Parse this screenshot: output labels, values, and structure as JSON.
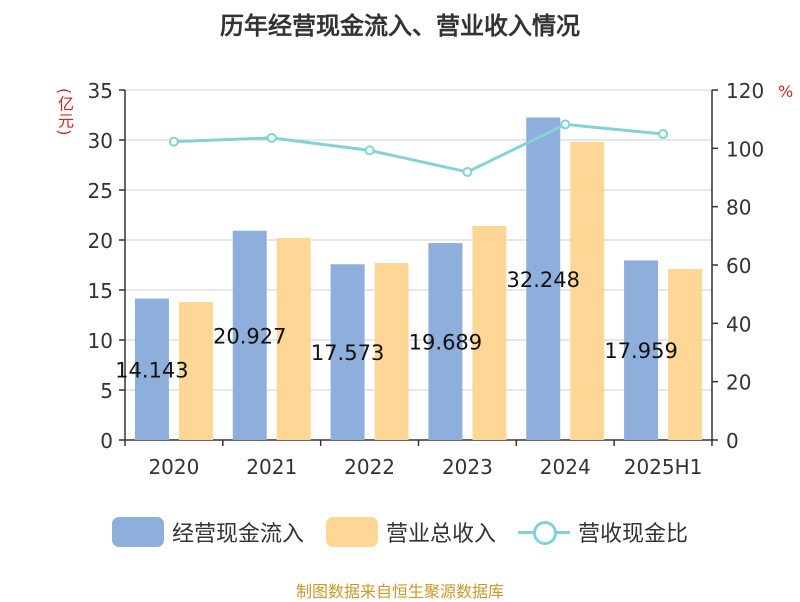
{
  "title": "历年经营现金流入、营业收入情况",
  "y_left_unit": "(亿元)",
  "y_right_unit": "%",
  "source": "制图数据来自恒生聚源数据库",
  "colors": {
    "cash_inflow": "#8eaedc",
    "revenue": "#fed796",
    "ratio": "#84d2d6",
    "unit_text": "#e02020",
    "source_text": "#c89a2c"
  },
  "legend": [
    {
      "label": "经营现金流入",
      "type": "bar",
      "color": "#8eaedc"
    },
    {
      "label": "营业总收入",
      "type": "bar",
      "color": "#fed796"
    },
    {
      "label": "营收现金比",
      "type": "line",
      "color": "#84d2d6"
    }
  ],
  "chart_data": {
    "type": "bar",
    "categories": [
      "2020",
      "2021",
      "2022",
      "2023",
      "2024",
      "2025H1"
    ],
    "series": [
      {
        "name": "经营现金流入",
        "type": "bar",
        "axis": "left",
        "values": [
          14.143,
          20.927,
          17.573,
          19.689,
          32.248,
          17.959
        ],
        "labels": [
          "14.143",
          "20.927",
          "17.573",
          "19.689",
          "32.248",
          "17.959"
        ]
      },
      {
        "name": "营业总收入",
        "type": "bar",
        "axis": "left",
        "values": [
          13.8,
          20.2,
          17.7,
          21.4,
          29.8,
          17.1
        ]
      },
      {
        "name": "营收现金比",
        "type": "line",
        "axis": "right",
        "values": [
          102.3,
          103.6,
          99.3,
          91.9,
          108.2,
          104.9
        ]
      }
    ],
    "y_left": {
      "min": 0,
      "max": 35,
      "ticks": [
        0,
        5,
        10,
        15,
        20,
        25,
        30,
        35
      ]
    },
    "y_right": {
      "min": 0,
      "max": 120,
      "ticks": [
        0,
        20,
        40,
        60,
        80,
        100,
        120
      ]
    },
    "grid": true,
    "legend_position": "bottom"
  }
}
